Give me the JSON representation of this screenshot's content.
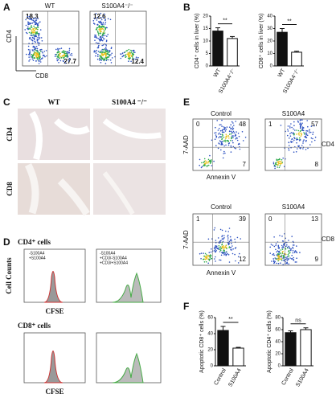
{
  "panels": {
    "A": {
      "label": "A",
      "groups": [
        "WT",
        "S100A4⁻/⁻"
      ],
      "y_axis": "CD4",
      "x_axis": "CD8",
      "quadrants": [
        [
          "18.3",
          "27.7"
        ],
        [
          "12.6",
          "12.4"
        ]
      ]
    },
    "B": {
      "label": "B"
    },
    "C": {
      "label": "C",
      "columns": [
        "WT",
        "S100A4 ⁻/⁻"
      ],
      "rows": [
        "CD4",
        "CD8"
      ]
    },
    "D": {
      "label": "D",
      "sections": [
        "CD4⁺ cells",
        "CD8⁺ cells"
      ],
      "x_axis": "CFSE",
      "y_axis": "Cell Counts",
      "legend_left": [
        "-S100A4",
        "+S100A4"
      ],
      "legend_right": [
        "-S100A4",
        "+CD3/-S100A4",
        "+CD3/+S100A4"
      ]
    },
    "E": {
      "label": "E",
      "columns": [
        "Control",
        "S100A4"
      ],
      "rows": [
        "CD4",
        "CD8"
      ],
      "y_axis": "7-AAD",
      "x_axis": "Annexin V",
      "quadrants": [
        [
          "0",
          "48",
          "7"
        ],
        [
          "1",
          "57",
          "8"
        ],
        [
          "1",
          "39",
          "12"
        ],
        [
          "0",
          "13",
          "9"
        ]
      ]
    },
    "F": {
      "label": "F"
    }
  },
  "chart_data": [
    {
      "type": "bar",
      "ylabel": "CD4⁺ cells in liver (%)",
      "categories": [
        "WT",
        "S100A4⁻/⁻"
      ],
      "values": [
        14,
        11
      ],
      "errors": [
        1.3,
        0.8
      ],
      "colors": [
        "#111111",
        "#ffffff"
      ],
      "ylim": [
        0,
        20
      ],
      "yticks": [
        0,
        5,
        10,
        15,
        20
      ],
      "annotation": "**"
    },
    {
      "type": "bar",
      "ylabel": "CD8⁺ cells in liver (%)",
      "categories": [
        "WT",
        "S100A4⁻/⁻"
      ],
      "values": [
        27,
        11
      ],
      "errors": [
        3,
        0.8
      ],
      "colors": [
        "#111111",
        "#ffffff"
      ],
      "ylim": [
        0,
        40
      ],
      "yticks": [
        0,
        10,
        20,
        30,
        40
      ],
      "annotation": "**"
    },
    {
      "type": "bar",
      "ylabel": "Apoptotic CD8⁺ cells (%)",
      "categories": [
        "Control",
        "S100A4"
      ],
      "values": [
        44,
        22
      ],
      "errors": [
        5,
        1
      ],
      "colors": [
        "#111111",
        "#ffffff"
      ],
      "ylim": [
        0,
        60
      ],
      "yticks": [
        0,
        20,
        40,
        60
      ],
      "annotation": "**"
    },
    {
      "type": "bar",
      "ylabel": "Apoptotic CD4⁺ cells (%)",
      "categories": [
        "Control",
        "S100A4"
      ],
      "values": [
        55,
        60
      ],
      "errors": [
        3,
        3
      ],
      "colors": [
        "#111111",
        "#ffffff"
      ],
      "ylim": [
        0,
        80
      ],
      "yticks": [
        0,
        20,
        40,
        60,
        80
      ],
      "annotation": "ns"
    }
  ]
}
